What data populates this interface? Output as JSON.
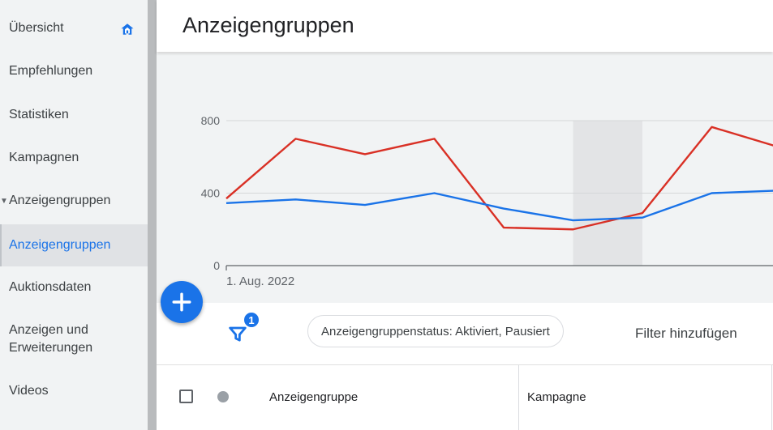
{
  "sidebar": {
    "items": [
      {
        "label": "Übersicht"
      },
      {
        "label": "Empfehlungen"
      },
      {
        "label": "Statistiken"
      },
      {
        "label": "Kampagnen"
      },
      {
        "label": "Anzeigengruppen"
      },
      {
        "label": "Anzeigengruppen"
      },
      {
        "label": "Auktionsdaten"
      },
      {
        "label": "Anzeigen und Erweiterungen"
      },
      {
        "label": "Videos"
      }
    ],
    "active_index": 5
  },
  "header": {
    "title": "Anzeigengruppen"
  },
  "chart_data": {
    "type": "line",
    "x_start_label": "1. Aug. 2022",
    "y_ticks": [
      0,
      400,
      800
    ],
    "ylim": [
      0,
      800
    ],
    "highlight_index": [
      5,
      6
    ],
    "series": [
      {
        "color": "#d93025",
        "values": [
          370,
          700,
          615,
          700,
          210,
          200,
          290,
          765,
          650
        ]
      },
      {
        "color": "#1a73e8",
        "values": [
          345,
          365,
          335,
          400,
          315,
          250,
          265,
          400,
          415
        ]
      }
    ]
  },
  "filters": {
    "badge_count": "1",
    "chip_label": "Anzeigengruppenstatus: Aktiviert, Pausiert",
    "add_filter_label": "Filter hinzufügen"
  },
  "table": {
    "columns": [
      "Anzeigengruppe",
      "Kampagne"
    ]
  },
  "colors": {
    "accent": "#1a73e8",
    "series_red": "#d93025"
  }
}
